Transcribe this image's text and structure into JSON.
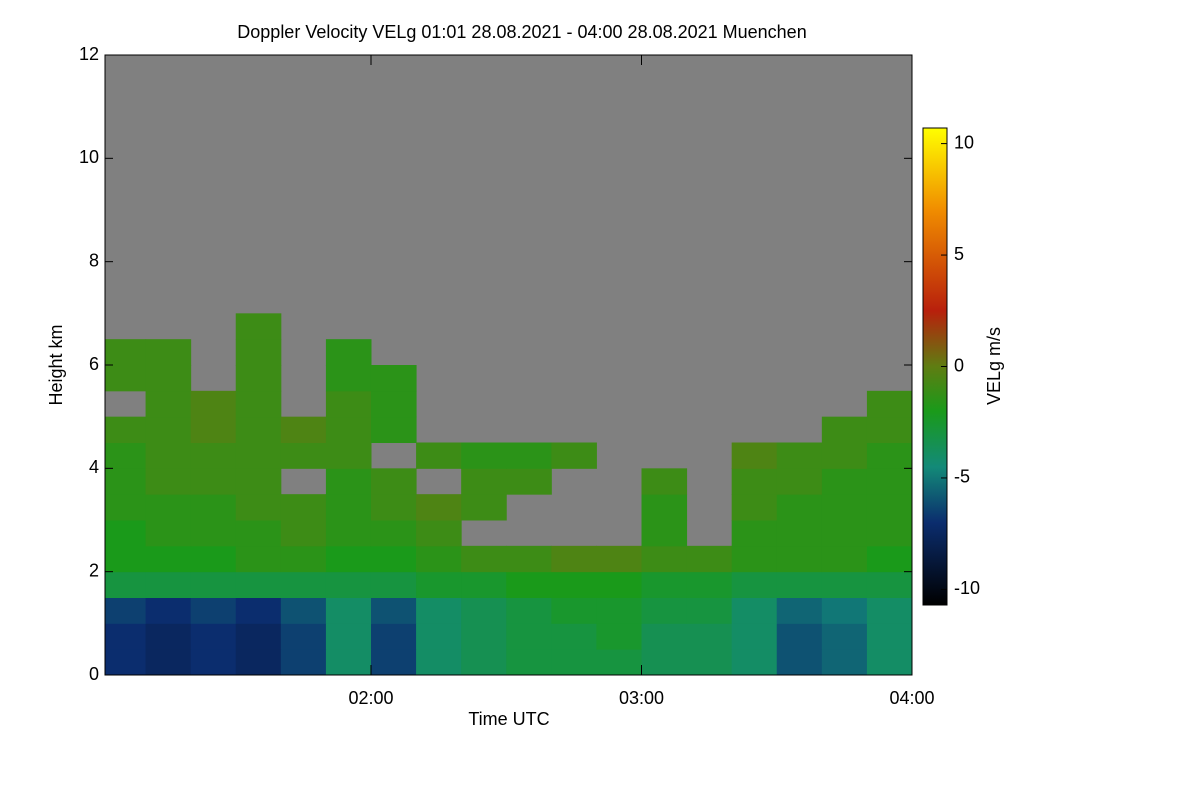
{
  "chart_data": {
    "type": "heatmap",
    "title": "Doppler Velocity VELg   01:01 28.08.2021 - 04:00 28.08.2021 Muenchen",
    "xlabel": "Time UTC",
    "ylabel": "Height km",
    "colorbar_label": "VELg m/s",
    "xlim": [
      61,
      240
    ],
    "ylim": [
      0,
      12
    ],
    "xticks": [
      {
        "value": 120,
        "label": "02:00"
      },
      {
        "value": 180,
        "label": "03:00"
      },
      {
        "value": 240,
        "label": "04:00"
      }
    ],
    "yticks": [
      0,
      2,
      4,
      6,
      8,
      10,
      12
    ],
    "clim": [
      -10.7,
      10.7
    ],
    "cticks": [
      -10,
      -5,
      0,
      5,
      10
    ],
    "background": "#808080",
    "colorscale": [
      {
        "value": -10.7,
        "color": "#000000"
      },
      {
        "value": -7,
        "color": "#0b2d6e"
      },
      {
        "value": -4.5,
        "color": "#138a78"
      },
      {
        "value": -2,
        "color": "#1a9a1a"
      },
      {
        "value": 0,
        "color": "#5f7d12"
      },
      {
        "value": 2.5,
        "color": "#b8200c"
      },
      {
        "value": 7,
        "color": "#f08c00"
      },
      {
        "value": 10.7,
        "color": "#ffff00"
      }
    ],
    "xbins": [
      61,
      70,
      80,
      90,
      100,
      110,
      120,
      130,
      140,
      150,
      160,
      170,
      180,
      190,
      200,
      210,
      220,
      230,
      240
    ],
    "ybins": [
      0,
      0.5,
      1,
      1.5,
      2,
      2.5,
      3,
      3.5,
      4,
      4.5,
      5,
      5.5,
      6,
      6.5,
      7
    ],
    "z": [
      [
        -7,
        -7.5,
        -7,
        -7.5,
        -6.5,
        -4,
        -6.5,
        -4,
        -3.5,
        -3,
        -3,
        -3,
        -3.5,
        -3.5,
        -4,
        -6,
        -5.5,
        -4
      ],
      [
        -7,
        -7.5,
        -7,
        -7.5,
        -6.5,
        -4,
        -6.5,
        -4,
        -3.5,
        -3,
        -3,
        -2.5,
        -3.5,
        -3.5,
        -4,
        -6,
        -5.5,
        -4
      ],
      [
        -6.5,
        -7,
        -6.5,
        -7,
        -6,
        -4,
        -6,
        -4,
        -3.5,
        -3,
        -2.5,
        -2.5,
        -3,
        -3,
        -4,
        -5.5,
        -5,
        -4
      ],
      [
        -3,
        -3,
        -3,
        -3,
        -3,
        -3,
        -3,
        -2.5,
        -2.5,
        -2,
        -2,
        -2,
        -2.5,
        -2.5,
        -3,
        -3,
        -3,
        -3
      ],
      [
        -2,
        -2,
        -2,
        -1.5,
        -1.5,
        -2,
        -2,
        -1.5,
        -1,
        -1,
        -0.5,
        -0.5,
        -1,
        -1,
        -1.5,
        -1.5,
        -1.5,
        -2
      ],
      [
        -2,
        -1.5,
        -1.5,
        -1.5,
        -1,
        -1.5,
        -1.5,
        -1,
        null,
        null,
        null,
        null,
        -1.5,
        null,
        -1.5,
        -1.5,
        -1.5,
        -1.5
      ],
      [
        -1.5,
        -1.5,
        -1.5,
        -1,
        -1,
        -1.5,
        -1,
        -0.5,
        -1,
        null,
        null,
        null,
        -1.5,
        null,
        -1,
        -1.5,
        -1.5,
        -1.5
      ],
      [
        -1.5,
        -1,
        -1,
        -1,
        null,
        -1.5,
        -1,
        null,
        -1,
        -1,
        null,
        null,
        -1,
        null,
        -1,
        -1,
        -1.5,
        -1.5
      ],
      [
        -1.5,
        -1,
        -1,
        -1,
        -1,
        -1,
        null,
        -1,
        -1.5,
        -1.5,
        -1,
        null,
        null,
        null,
        -0.5,
        -1,
        -1,
        -1.5
      ],
      [
        -1,
        -1,
        -0.5,
        -1,
        -0.5,
        -1,
        -1.5,
        null,
        null,
        null,
        null,
        null,
        null,
        null,
        null,
        null,
        -1,
        -1
      ],
      [
        null,
        -1,
        -0.5,
        -1,
        null,
        -1,
        -1.5,
        null,
        null,
        null,
        null,
        null,
        null,
        null,
        null,
        null,
        null,
        -1
      ],
      [
        -1,
        -1,
        null,
        -1,
        null,
        -1.5,
        -1.5,
        null,
        null,
        null,
        null,
        null,
        null,
        null,
        null,
        null,
        null,
        null
      ],
      [
        -1,
        -1,
        null,
        -1,
        null,
        -1.5,
        null,
        null,
        null,
        null,
        null,
        null,
        null,
        null,
        null,
        null,
        null,
        null
      ],
      [
        null,
        null,
        null,
        -1,
        null,
        null,
        null,
        null,
        null,
        null,
        null,
        null,
        null,
        null,
        null,
        null,
        null,
        null
      ]
    ]
  }
}
